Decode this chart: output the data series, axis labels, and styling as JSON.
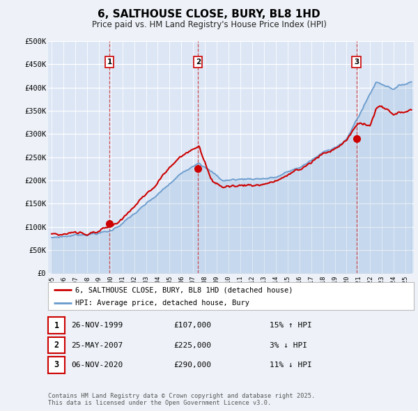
{
  "title": "6, SALTHOUSE CLOSE, BURY, BL8 1HD",
  "subtitle": "Price paid vs. HM Land Registry's House Price Index (HPI)",
  "bg_color": "#eef2f8",
  "plot_bg_color": "#dce6f5",
  "grid_color": "#ffffff",
  "red_line_color": "#cc0000",
  "blue_line_color": "#6699cc",
  "vline_color": "#cc3333",
  "ylim": [
    0,
    500000
  ],
  "yticks": [
    0,
    50000,
    100000,
    150000,
    200000,
    250000,
    300000,
    350000,
    400000,
    450000,
    500000
  ],
  "ytick_labels": [
    "£0",
    "£50K",
    "£100K",
    "£150K",
    "£200K",
    "£250K",
    "£300K",
    "£350K",
    "£400K",
    "£450K",
    "£500K"
  ],
  "xlim_start": 1994.7,
  "xlim_end": 2025.7,
  "sale_dates": [
    1999.9,
    2007.41,
    2020.84
  ],
  "sale_prices": [
    107000,
    225000,
    290000
  ],
  "sale_labels": [
    "1",
    "2",
    "3"
  ],
  "sale_info": [
    {
      "num": "1",
      "date": "26-NOV-1999",
      "price": "£107,000",
      "hpi": "15% ↑ HPI"
    },
    {
      "num": "2",
      "date": "25-MAY-2007",
      "price": "£225,000",
      "hpi": "3% ↓ HPI"
    },
    {
      "num": "3",
      "date": "06-NOV-2020",
      "price": "£290,000",
      "hpi": "11% ↓ HPI"
    }
  ],
  "legend_entries": [
    "6, SALTHOUSE CLOSE, BURY, BL8 1HD (detached house)",
    "HPI: Average price, detached house, Bury"
  ],
  "footer": "Contains HM Land Registry data © Crown copyright and database right 2025.\nThis data is licensed under the Open Government Licence v3.0."
}
